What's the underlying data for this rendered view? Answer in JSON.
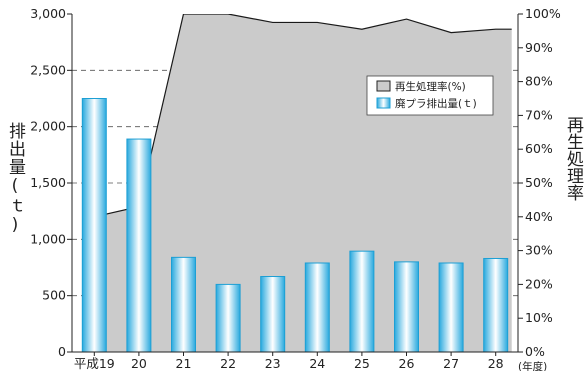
{
  "chart_data": {
    "type": "bar",
    "categories": [
      "平成19",
      "20",
      "21",
      "22",
      "23",
      "24",
      "25",
      "26",
      "27",
      "28"
    ],
    "x_unit": "(年度)",
    "series": [
      {
        "name": "廃プラ排出量(ｔ)",
        "type": "bar",
        "axis": "left",
        "values": [
          2250,
          1890,
          840,
          600,
          670,
          790,
          895,
          800,
          790,
          830
        ]
      },
      {
        "name": "再生処理率(%)",
        "type": "area",
        "axis": "right",
        "values": [
          40,
          43,
          100,
          100,
          97.5,
          97.5,
          95.5,
          98.5,
          94.5,
          95.5
        ]
      }
    ],
    "ylabel_left": "排出量(ｔ)",
    "ylabel_right": "再生処理率",
    "ylim_left": [
      0,
      3000
    ],
    "ylim_right": [
      0,
      100
    ],
    "yticks_left": [
      "0",
      "500",
      "1,000",
      "1,500",
      "2,000",
      "2,500",
      "3,000"
    ],
    "yticks_right": [
      "0%",
      "10%",
      "20%",
      "30%",
      "40%",
      "50%",
      "60%",
      "70%",
      "80%",
      "90%",
      "100%"
    ],
    "grid": "dashed",
    "legend_position": "top-right",
    "colors": {
      "area_fill": "#cbcbcb",
      "area_line": "#1a1a1a",
      "bar_edge": "#1d9fd4",
      "bar_mid": "#ffffff",
      "bar_side": "#46c1ee"
    }
  }
}
